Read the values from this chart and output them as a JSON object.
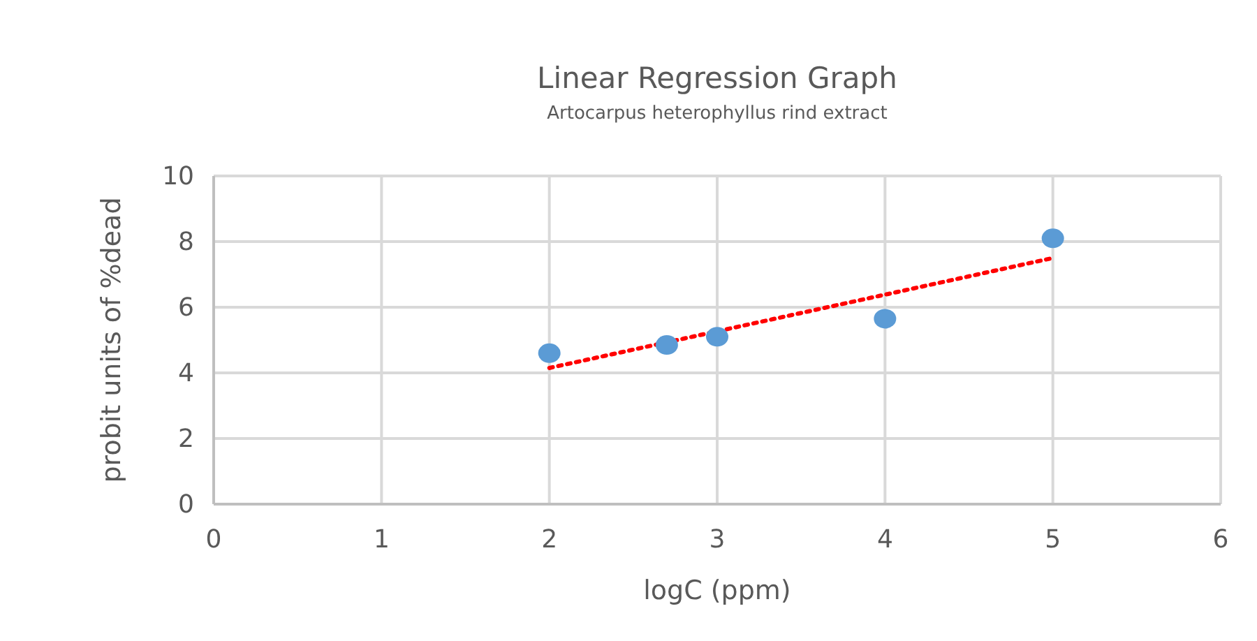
{
  "chart_data": {
    "type": "scatter",
    "title": "Linear Regression Graph",
    "subtitle": "Artocarpus heterophyllus rind extract",
    "xlabel": "logC (ppm)",
    "ylabel": "probit units of  %dead",
    "series": [
      {
        "color": "#5b9bd5",
        "x": [
          2,
          2.7,
          3,
          4,
          5
        ],
        "values": [
          4.6,
          4.85,
          5.1,
          5.65,
          8.1
        ],
        "marker": "circle"
      },
      {
        "type": "line",
        "color": "#ff0000",
        "x": [
          2,
          5
        ],
        "values": [
          4.15,
          7.5
        ],
        "line_style": "dotted",
        "marker": "none"
      }
    ],
    "xlim": [
      0,
      6
    ],
    "xticks": [
      0,
      1,
      2,
      3,
      4,
      5,
      6
    ],
    "ylim": [
      0,
      10
    ],
    "yticks": [
      0,
      2,
      4,
      6,
      8,
      10
    ],
    "grid": true
  }
}
